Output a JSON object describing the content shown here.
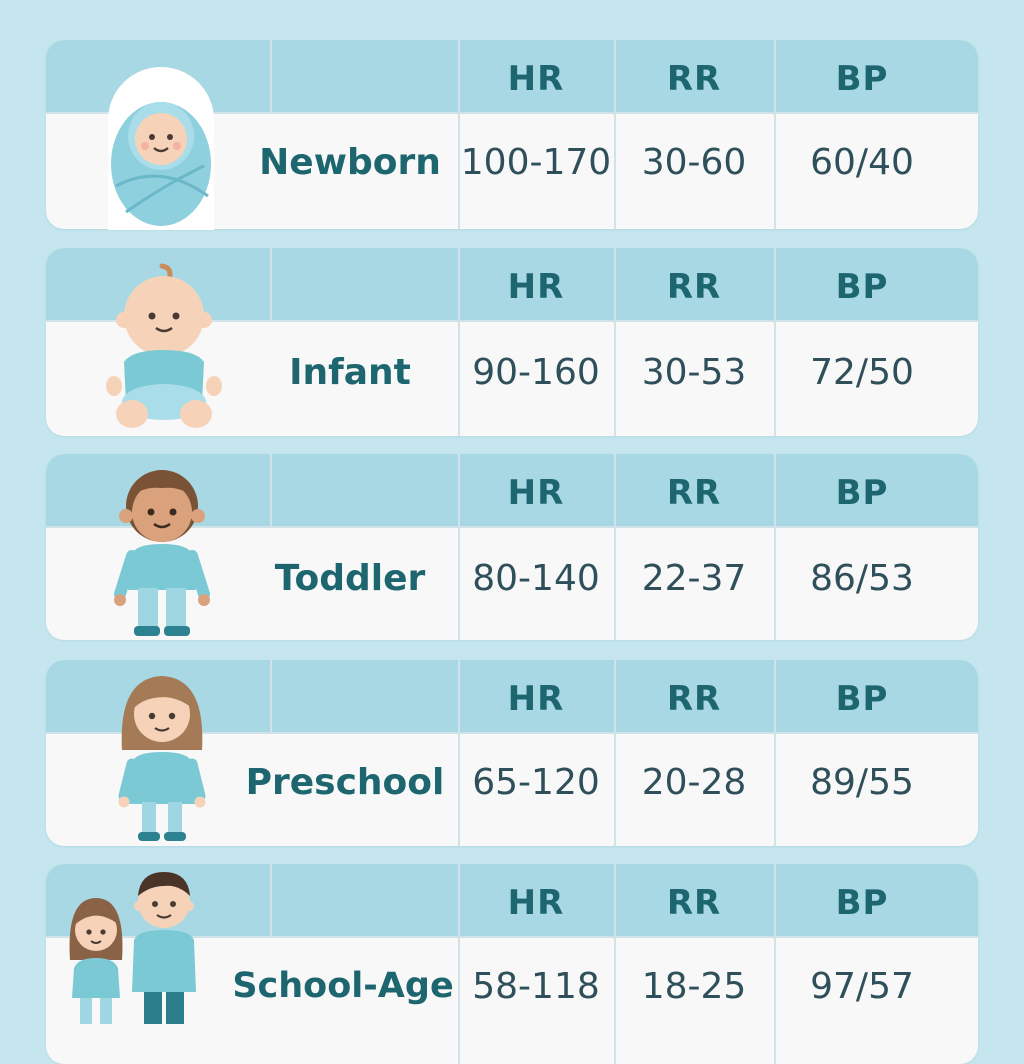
{
  "headers": {
    "hr": "HR",
    "rr": "RR",
    "bp": "BP"
  },
  "rows": [
    {
      "stage": "Newborn",
      "hr": "100-170",
      "rr": "30-60",
      "bp": "60/40",
      "figure": "swaddled-baby-icon"
    },
    {
      "stage": "Infant",
      "hr": "90-160",
      "rr": "30-53",
      "bp": "72/50",
      "figure": "sitting-baby-icon"
    },
    {
      "stage": "Toddler",
      "hr": "80-140",
      "rr": "22-37",
      "bp": "86/53",
      "figure": "toddler-icon"
    },
    {
      "stage": "Preschool",
      "hr": "65-120",
      "rr": "20-28",
      "bp": "89/55",
      "figure": "preschool-girl-icon"
    },
    {
      "stage": "School-Age",
      "hr": "58-118",
      "rr": "18-25",
      "bp": "97/57",
      "figure": "school-age-children-icon"
    }
  ],
  "colors": {
    "background": "#c5e6ee",
    "header": "#a8d8e3",
    "row": "#f7f8f7",
    "stage_text": "#1d6670",
    "value_text": "#2f4f5a"
  }
}
